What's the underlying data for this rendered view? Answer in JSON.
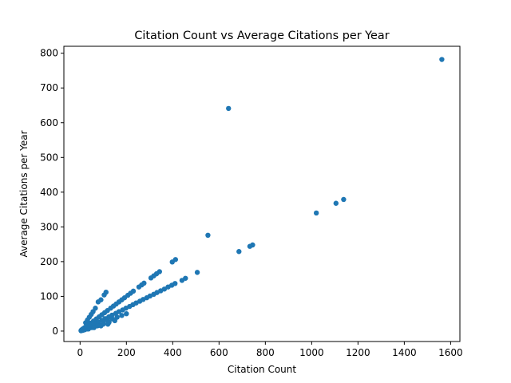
{
  "chart_data": {
    "type": "scatter",
    "title": "Citation Count vs Average Citations per Year",
    "xlabel": "Citation Count",
    "ylabel": "Average Citations per Year",
    "xlim": [
      -70,
      1640
    ],
    "ylim": [
      -30,
      820
    ],
    "xticks": [
      0,
      200,
      400,
      600,
      800,
      1000,
      1200,
      1400,
      1600
    ],
    "yticks": [
      0,
      100,
      200,
      300,
      400,
      500,
      600,
      700,
      800
    ],
    "grid": false,
    "legend": "none",
    "color": "#1f77b4",
    "points": [
      [
        1562,
        782
      ],
      [
        641,
        641
      ],
      [
        1138,
        379
      ],
      [
        1105,
        368
      ],
      [
        1020,
        340
      ],
      [
        552,
        276
      ],
      [
        745,
        248
      ],
      [
        733,
        244
      ],
      [
        686,
        229
      ],
      [
        412,
        206
      ],
      [
        398,
        199
      ],
      [
        506,
        169
      ],
      [
        455,
        152
      ],
      [
        440,
        146
      ],
      [
        343,
        171
      ],
      [
        330,
        165
      ],
      [
        318,
        159
      ],
      [
        306,
        153
      ],
      [
        276,
        138
      ],
      [
        266,
        133
      ],
      [
        254,
        127
      ],
      [
        230,
        115
      ],
      [
        218,
        109
      ],
      [
        206,
        103
      ],
      [
        192,
        96
      ],
      [
        180,
        90
      ],
      [
        168,
        84
      ],
      [
        156,
        78
      ],
      [
        144,
        72
      ],
      [
        132,
        66
      ],
      [
        118,
        59
      ],
      [
        106,
        53
      ],
      [
        94,
        47
      ],
      [
        82,
        41
      ],
      [
        70,
        35
      ],
      [
        58,
        29
      ],
      [
        46,
        23
      ],
      [
        36,
        18
      ],
      [
        26,
        13
      ],
      [
        16,
        8
      ],
      [
        112,
        112
      ],
      [
        104,
        104
      ],
      [
        90,
        90
      ],
      [
        78,
        84
      ],
      [
        66,
        66
      ],
      [
        56,
        56
      ],
      [
        48,
        48
      ],
      [
        40,
        40
      ],
      [
        32,
        32
      ],
      [
        24,
        24
      ],
      [
        410,
        137
      ],
      [
        396,
        132
      ],
      [
        380,
        127
      ],
      [
        364,
        121
      ],
      [
        348,
        116
      ],
      [
        332,
        111
      ],
      [
        318,
        106
      ],
      [
        302,
        101
      ],
      [
        288,
        96
      ],
      [
        272,
        91
      ],
      [
        258,
        86
      ],
      [
        242,
        81
      ],
      [
        228,
        76
      ],
      [
        214,
        71
      ],
      [
        198,
        66
      ],
      [
        184,
        61
      ],
      [
        168,
        56
      ],
      [
        154,
        51
      ],
      [
        138,
        46
      ],
      [
        124,
        41
      ],
      [
        108,
        36
      ],
      [
        94,
        31
      ],
      [
        78,
        26
      ],
      [
        64,
        21
      ],
      [
        50,
        17
      ],
      [
        36,
        12
      ],
      [
        22,
        7
      ],
      [
        200,
        50
      ],
      [
        180,
        45
      ],
      [
        160,
        40
      ],
      [
        140,
        35
      ],
      [
        120,
        30
      ],
      [
        100,
        25
      ],
      [
        80,
        20
      ],
      [
        60,
        15
      ],
      [
        40,
        10
      ],
      [
        150,
        30
      ],
      [
        125,
        25
      ],
      [
        100,
        20
      ],
      [
        75,
        15
      ],
      [
        50,
        10
      ],
      [
        30,
        6
      ],
      [
        120,
        20
      ],
      [
        90,
        15
      ],
      [
        60,
        10
      ],
      [
        36,
        6
      ],
      [
        20,
        4
      ],
      [
        15,
        3
      ],
      [
        10,
        2
      ],
      [
        8,
        4
      ],
      [
        6,
        3
      ],
      [
        12,
        6
      ],
      [
        18,
        9
      ],
      [
        14,
        7
      ],
      [
        5,
        2
      ],
      [
        4,
        1
      ],
      [
        10,
        5
      ],
      [
        22,
        11
      ],
      [
        28,
        14
      ],
      [
        34,
        17
      ]
    ]
  }
}
